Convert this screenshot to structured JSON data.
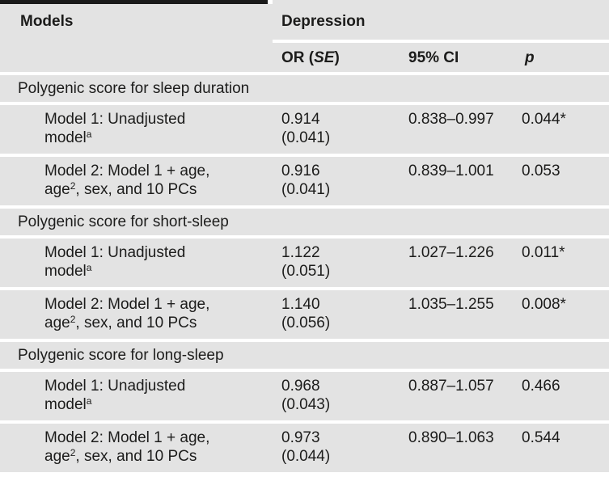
{
  "colors": {
    "row_background": "#e3e3e3",
    "separator_rule": "#ffffff",
    "top_bar": "#1a1a1a",
    "text": "#1c1c1b"
  },
  "header": {
    "models": "Models",
    "spanner": "Depression",
    "or_pre": "OR (",
    "or_se": "SE",
    "or_post": ")",
    "ci": "95% CI",
    "p": "p"
  },
  "sections": [
    {
      "title": "Polygenic score for sleep duration",
      "rows": [
        {
          "l1": "Model 1: Unadjusted",
          "l2": "model",
          "sup": "a",
          "l3": "",
          "or": "0.914",
          "se": "(0.041)",
          "ci": "0.838–0.997",
          "p": "0.044*"
        },
        {
          "l1": "Model 2: Model 1 + age,",
          "l2": "age",
          "sup": "2",
          "l3": ", sex, and 10 PCs",
          "or": "0.916",
          "se": "(0.041)",
          "ci": "0.839–1.001",
          "p": "0.053"
        }
      ]
    },
    {
      "title": "Polygenic score for short-sleep",
      "rows": [
        {
          "l1": "Model 1: Unadjusted",
          "l2": "model",
          "sup": "a",
          "l3": "",
          "or": "1.122",
          "se": "(0.051)",
          "ci": "1.027–1.226",
          "p": "0.011*"
        },
        {
          "l1": "Model 2: Model 1 + age,",
          "l2": "age",
          "sup": "2",
          "l3": ", sex, and 10 PCs",
          "or": "1.140",
          "se": "(0.056)",
          "ci": "1.035–1.255",
          "p": "0.008*"
        }
      ]
    },
    {
      "title": "Polygenic score for long-sleep",
      "rows": [
        {
          "l1": "Model 1: Unadjusted",
          "l2": "model",
          "sup": "a",
          "l3": "",
          "or": "0.968",
          "se": "(0.043)",
          "ci": "0.887–1.057",
          "p": "0.466"
        },
        {
          "l1": "Model 2: Model 1 + age,",
          "l2": "age",
          "sup": "2",
          "l3": ", sex, and 10 PCs",
          "or": "0.973",
          "se": "(0.044)",
          "ci": "0.890–1.063",
          "p": "0.544"
        }
      ]
    }
  ]
}
